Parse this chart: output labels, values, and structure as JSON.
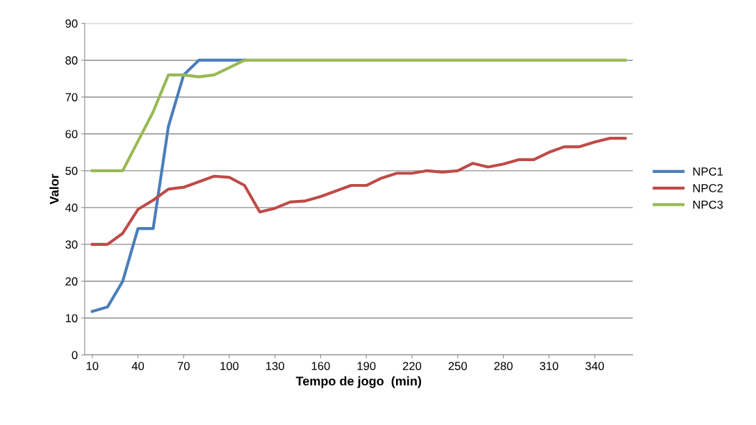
{
  "chart_data": {
    "type": "line",
    "xlabel": "Tempo de jogo  (min)",
    "ylabel": "Valor",
    "x": [
      10,
      20,
      30,
      40,
      50,
      60,
      70,
      80,
      90,
      100,
      110,
      120,
      130,
      140,
      150,
      160,
      170,
      180,
      190,
      200,
      210,
      220,
      230,
      240,
      250,
      260,
      270,
      280,
      290,
      300,
      310,
      320,
      330,
      340,
      350,
      360
    ],
    "series": [
      {
        "name": "NPC1",
        "color": "#4a7ebb",
        "values": [
          11.8,
          13,
          20,
          34.3,
          34.3,
          62,
          76,
          80,
          80,
          80,
          80,
          null,
          null,
          null,
          null,
          null,
          null,
          null,
          null,
          null,
          null,
          null,
          null,
          null,
          null,
          null,
          null,
          null,
          null,
          null,
          null,
          null,
          null,
          null,
          null,
          null
        ]
      },
      {
        "name": "NPC2",
        "color": "#be4b48",
        "values": [
          30,
          30,
          33,
          39.5,
          42,
          45,
          45.5,
          47,
          48.5,
          48.2,
          46,
          38.8,
          39.8,
          41.5,
          41.8,
          43,
          44.5,
          46,
          46,
          48,
          49.3,
          49.3,
          50,
          49.6,
          50,
          52,
          51,
          51.8,
          53,
          53,
          55,
          56.5,
          56.5,
          57.8,
          58.8,
          58.8
        ]
      },
      {
        "name": "NPC3",
        "color": "#98b954",
        "values": [
          50,
          50,
          50,
          58,
          66,
          76,
          76,
          75.5,
          76,
          78,
          80,
          80,
          80,
          80,
          80,
          80,
          80,
          80,
          80,
          80,
          80,
          80,
          80,
          80,
          80,
          80,
          80,
          80,
          80,
          80,
          80,
          80,
          80,
          80,
          80,
          80
        ]
      }
    ],
    "xlim": [
      5,
      365
    ],
    "xticks": [
      10,
      40,
      70,
      100,
      130,
      160,
      190,
      220,
      250,
      280,
      310,
      340
    ],
    "ylim": [
      0,
      90
    ],
    "yticks": [
      0,
      10,
      20,
      30,
      40,
      50,
      60,
      70,
      80,
      90
    ],
    "grid": "y",
    "legend": "right",
    "marker": "none",
    "line_style": "solid"
  }
}
